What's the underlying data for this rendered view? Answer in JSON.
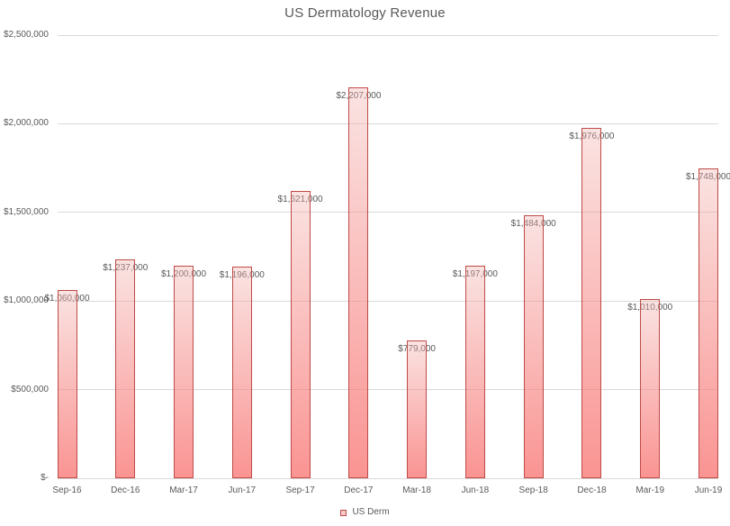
{
  "title": "US Dermatology Revenue",
  "colors": {
    "title_text": "#595959",
    "axis_text": "#595959",
    "label_text": "#595959",
    "gridline": "#d9d9d9",
    "axis_line": "#d9d9d9",
    "bar_border": "#be4b48",
    "bar_fill_top": "rgba(242,182,178,0.38)",
    "bar_fill_bottom": "rgba(249,118,116,0.78)",
    "legend_swatch_fill": "#f7cbc9"
  },
  "chart_data": {
    "type": "bar",
    "title": "US Dermatology Revenue",
    "categories": [
      "Sep-16",
      "Dec-16",
      "Mar-17",
      "Jun-17",
      "Sep-17",
      "Dec-17",
      "Mar-18",
      "Jun-18",
      "Sep-18",
      "Dec-18",
      "Mar-19",
      "Jun-19"
    ],
    "series": [
      {
        "name": "US Derm",
        "values": [
          1060000,
          1237000,
          1200000,
          1196000,
          1621000,
          2207000,
          779000,
          1197000,
          1484000,
          1976000,
          1010000,
          1748000
        ],
        "data_labels": [
          "$1,060,000",
          "$1,237,000",
          "$1,200,000",
          "$1,196,000",
          "$1,621,000",
          "$2,207,000",
          "$779,000",
          "$1,197,000",
          "$1,484,000",
          "$1,976,000",
          "$1,010,000",
          "$1,748,000"
        ]
      }
    ],
    "xlabel": "",
    "ylabel": "",
    "ylim": [
      0,
      2500000
    ],
    "yticks": [
      {
        "value": 0,
        "label": "$-"
      },
      {
        "value": 500000,
        "label": "$500,000"
      },
      {
        "value": 1000000,
        "label": "$1,000,000"
      },
      {
        "value": 1500000,
        "label": "$1,500,000"
      },
      {
        "value": 2000000,
        "label": "$2,000,000"
      },
      {
        "value": 2500000,
        "label": "$2,500,000"
      }
    ],
    "grid": "horizontal",
    "legend_position": "bottom",
    "data_label_position": "inside-end"
  },
  "legend": {
    "items": [
      {
        "label": "US Derm"
      }
    ]
  }
}
